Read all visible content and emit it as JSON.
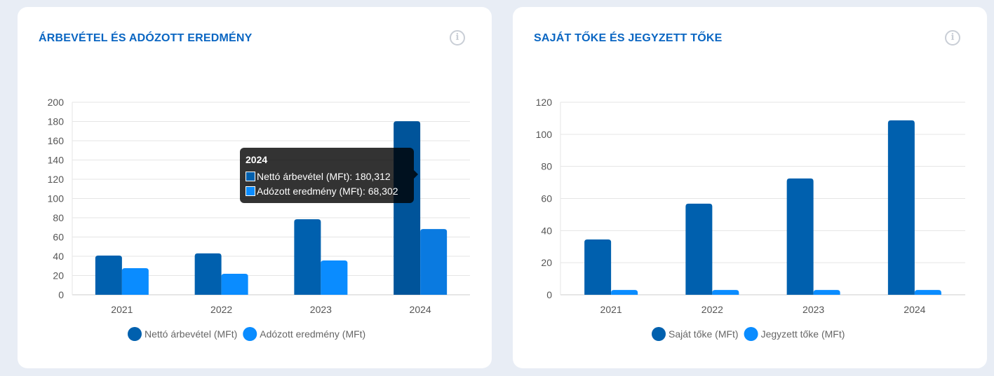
{
  "chart_data": [
    {
      "type": "bar",
      "title": "ÁRBEVÉTEL ÉS ADÓZOTT EREDMÉNY",
      "categories": [
        "2021",
        "2022",
        "2023",
        "2024"
      ],
      "series": [
        {
          "name": "Nettó árbevétel (MFt)",
          "color": "#0060ae",
          "values": [
            40.7,
            43,
            78.5,
            180.312
          ]
        },
        {
          "name": "Adózott eredmény (MFt)",
          "color": "#0a8cff",
          "values": [
            27.6,
            21.8,
            35.6,
            68.302
          ]
        }
      ],
      "ylim": [
        0,
        200
      ],
      "yticks": [
        0,
        20,
        40,
        60,
        80,
        100,
        120,
        140,
        160,
        180,
        200
      ],
      "legend": "bottom",
      "tooltip": {
        "title": "2024",
        "rows": [
          "Nettó árbevétel (MFt): 180,312",
          "Adózott eredmény (MFt): 68,302"
        ]
      }
    },
    {
      "type": "bar",
      "title": "SAJÁT TŐKE ÉS JEGYZETT TŐKE",
      "categories": [
        "2021",
        "2022",
        "2023",
        "2024"
      ],
      "series": [
        {
          "name": "Saját tőke (MFt)",
          "color": "#0060ae",
          "values": [
            34.5,
            56.8,
            72.5,
            108.7
          ]
        },
        {
          "name": "Jegyzett tőke (MFt)",
          "color": "#0a8cff",
          "values": [
            3,
            3,
            3,
            3
          ]
        }
      ],
      "ylim": [
        0,
        120
      ],
      "yticks": [
        0,
        20,
        40,
        60,
        80,
        100,
        120
      ],
      "legend": "bottom"
    }
  ],
  "info_icon": "i"
}
